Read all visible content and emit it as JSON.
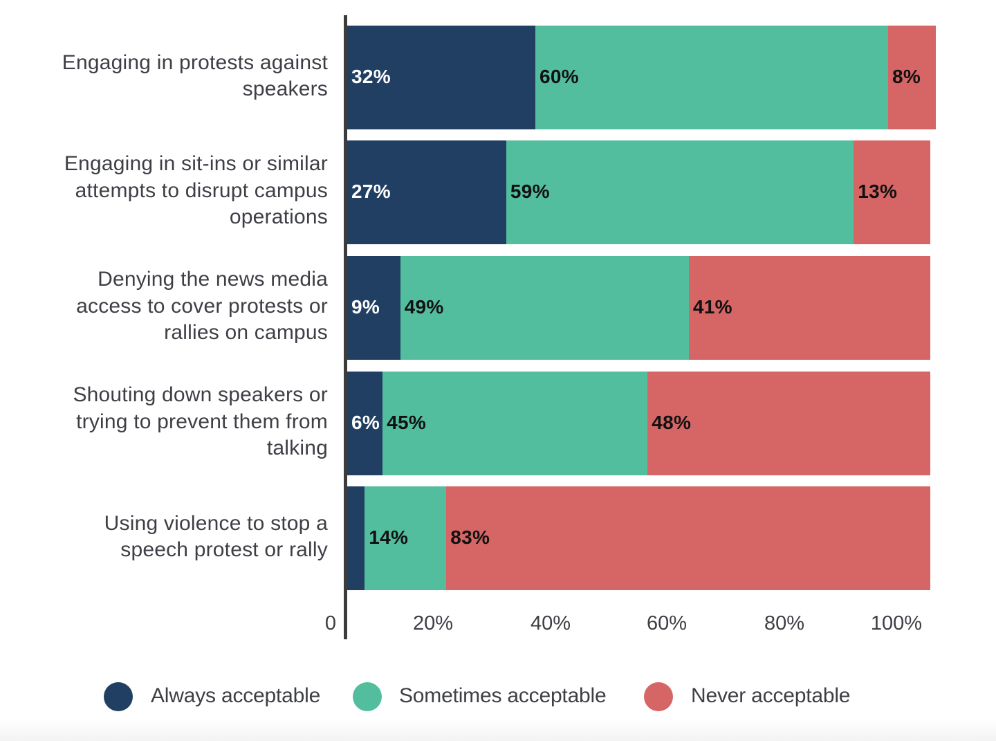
{
  "chart_data": {
    "type": "bar",
    "orientation": "horizontal",
    "stacked": true,
    "title": "",
    "xlabel": "",
    "ylabel": "",
    "xlim": [
      0,
      100
    ],
    "categories": [
      "Engaging in protests against speakers",
      "Engaging in sit-ins or similar attempts to disrupt campus operations",
      "Denying the news media access to cover protests or rallies on campus",
      "Shouting down speakers or trying to prevent them from talking",
      "Using violence to stop a speech protest or rally"
    ],
    "category_lines": [
      [
        "Engaging in protests against",
        "speakers"
      ],
      [
        "Engaging in sit-ins or similar",
        "attempts to disrupt campus",
        "operations"
      ],
      [
        "Denying the news media",
        "access to cover protests or",
        "rallies on campus"
      ],
      [
        "Shouting down speakers or",
        "trying to prevent them from",
        "talking"
      ],
      [
        "Using violence to stop a",
        "speech protest or rally"
      ]
    ],
    "series": [
      {
        "name": "Always acceptable",
        "color": "#213f63",
        "label_color": "#ffffff",
        "values": [
          32,
          27,
          9,
          6,
          3
        ],
        "labels": [
          "32%",
          "27%",
          "9%",
          "6%",
          ""
        ]
      },
      {
        "name": "Sometimes acceptable",
        "color": "#52be9d",
        "label_color": "#111111",
        "values": [
          60,
          59,
          49,
          45,
          14
        ],
        "labels": [
          "60%",
          "59%",
          "49%",
          "45%",
          "14%"
        ]
      },
      {
        "name": "Never acceptable",
        "color": "#d66665",
        "label_color": "#111111",
        "values": [
          8,
          13,
          41,
          48,
          83
        ],
        "labels": [
          "8%",
          "13%",
          "41%",
          "48%",
          "83%"
        ]
      }
    ],
    "x_ticks": [
      "0",
      "20%",
      "40%",
      "60%",
      "80%",
      "100%"
    ],
    "legend": {
      "position": "bottom"
    },
    "grid": false
  }
}
